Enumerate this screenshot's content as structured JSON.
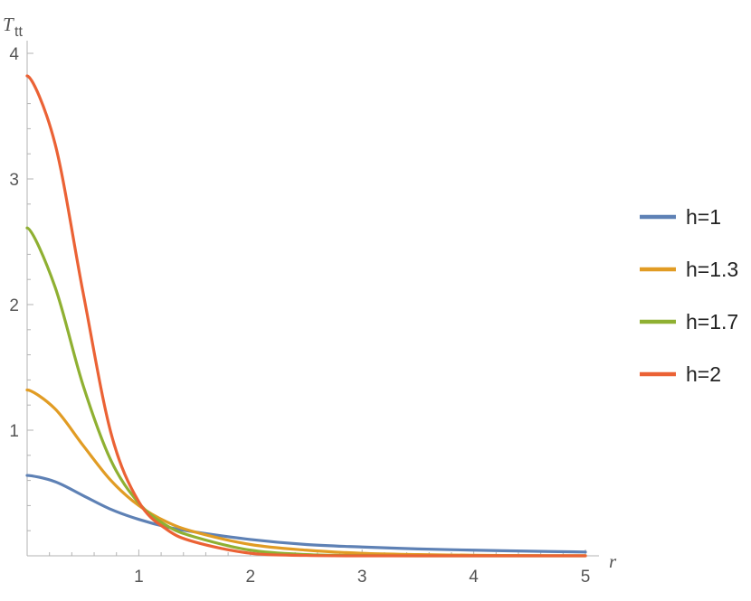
{
  "chart_data": {
    "type": "line",
    "xlabel": "r",
    "ylabel": "T",
    "ylabel_subscript": "tt",
    "xlim": [
      0,
      5
    ],
    "ylim": [
      0,
      4
    ],
    "x_ticks": [
      "1",
      "2",
      "3",
      "4",
      "5"
    ],
    "y_ticks": [
      "1",
      "2",
      "3",
      "4"
    ],
    "grid": false,
    "legend_position": "right",
    "x": [
      0,
      0.25,
      0.5,
      0.75,
      1,
      1.25,
      1.5,
      2,
      2.5,
      3,
      3.5,
      4,
      4.5,
      5
    ],
    "series": [
      {
        "name": "h=1",
        "color": "#5e81b5",
        "values": [
          0.64,
          0.59,
          0.48,
          0.37,
          0.29,
          0.23,
          0.19,
          0.13,
          0.09,
          0.07,
          0.055,
          0.045,
          0.037,
          0.03
        ]
      },
      {
        "name": "h=1.3",
        "color": "#e19c24",
        "values": [
          1.32,
          1.17,
          0.88,
          0.6,
          0.4,
          0.27,
          0.19,
          0.09,
          0.045,
          0.02,
          0.01,
          0.005,
          0.002,
          0.001
        ]
      },
      {
        "name": "h=1.7",
        "color": "#8fb032",
        "values": [
          2.61,
          2.14,
          1.36,
          0.76,
          0.42,
          0.24,
          0.15,
          0.045,
          0.01,
          0.002,
          0,
          0,
          0,
          0
        ]
      },
      {
        "name": "h=2",
        "color": "#eb6235",
        "values": [
          3.82,
          3.28,
          2.1,
          0.98,
          0.43,
          0.21,
          0.11,
          0.02,
          0.003,
          0,
          0,
          0,
          0,
          0
        ]
      }
    ]
  }
}
